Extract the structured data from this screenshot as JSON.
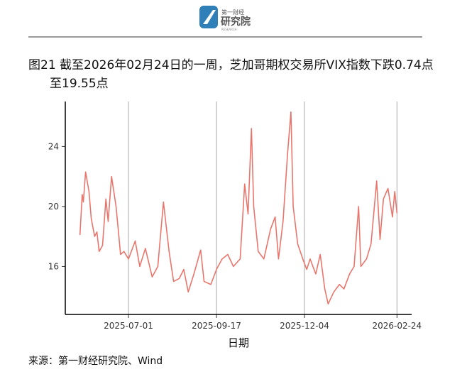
{
  "header": {
    "brand": "第一财经",
    "name": "研究院",
    "sub": "RESEARCH"
  },
  "chart_data": {
    "type": "line",
    "title": "图21  截至2026年02月24日的一周，芝加哥期权交易所VIX指数下跌0.74点至19.55点",
    "x_label": "日期",
    "source": "来源：第一财经研究院、Wind",
    "x": [
      "2025-05-19",
      "2025-05-21",
      "2025-05-22",
      "2025-05-24",
      "2025-05-27",
      "2025-05-29",
      "2025-06-01",
      "2025-06-03",
      "2025-06-05",
      "2025-06-08",
      "2025-06-11",
      "2025-06-13",
      "2025-06-16",
      "2025-06-18",
      "2025-06-20",
      "2025-06-24",
      "2025-06-27",
      "2025-07-01",
      "2025-07-07",
      "2025-07-11",
      "2025-07-16",
      "2025-07-22",
      "2025-07-27",
      "2025-08-01",
      "2025-08-06",
      "2025-08-10",
      "2025-08-15",
      "2025-08-19",
      "2025-08-23",
      "2025-08-28",
      "2025-09-03",
      "2025-09-06",
      "2025-09-12",
      "2025-09-17",
      "2025-09-22",
      "2025-09-27",
      "2025-10-02",
      "2025-10-08",
      "2025-10-12",
      "2025-10-15",
      "2025-10-18",
      "2025-10-20",
      "2025-10-24",
      "2025-10-29",
      "2025-11-04",
      "2025-11-08",
      "2025-11-11",
      "2025-11-15",
      "2025-11-19",
      "2025-11-22",
      "2025-11-24",
      "2025-11-28",
      "2025-12-03",
      "2025-12-06",
      "2025-12-09",
      "2025-12-14",
      "2025-12-18",
      "2025-12-22",
      "2025-12-25",
      "2025-12-30",
      "2026-01-04",
      "2026-01-08",
      "2026-01-13",
      "2026-01-17",
      "2026-01-21",
      "2026-01-23",
      "2026-01-28",
      "2026-02-01",
      "2026-02-06",
      "2026-02-09",
      "2026-02-12",
      "2026-02-16",
      "2026-02-20",
      "2026-02-22",
      "2026-02-24"
    ],
    "series": [
      {
        "name": "VIX",
        "color": "#e8766d",
        "values": [
          18.1,
          20.8,
          20.3,
          22.3,
          21.0,
          19.2,
          18.0,
          18.3,
          17.0,
          17.4,
          20.5,
          19.0,
          22.0,
          21.0,
          20.0,
          16.8,
          17.0,
          16.5,
          17.7,
          16.0,
          17.2,
          15.3,
          16.0,
          20.3,
          17.0,
          15.0,
          15.2,
          15.8,
          14.3,
          15.5,
          17.1,
          15.0,
          14.8,
          15.8,
          16.5,
          16.8,
          16.0,
          16.5,
          21.5,
          19.5,
          25.2,
          20.0,
          17.0,
          16.5,
          18.5,
          19.3,
          16.5,
          19.0,
          23.5,
          26.3,
          20.0,
          17.5,
          16.4,
          15.8,
          16.5,
          15.5,
          16.8,
          14.5,
          13.5,
          14.3,
          14.8,
          14.5,
          15.5,
          16.0,
          20.0,
          16.0,
          16.5,
          17.5,
          21.7,
          17.8,
          20.5,
          21.2,
          19.3,
          21.0,
          19.55
        ]
      }
    ],
    "xlim": [
      "2025-05-06",
      "2026-03-09"
    ],
    "xticks": [
      "2025-07-01",
      "2025-09-17",
      "2025-12-04",
      "2026-02-24"
    ],
    "ylim": [
      12.8,
      27.0
    ],
    "yticks": [
      16,
      20,
      24
    ],
    "grid": "x"
  }
}
